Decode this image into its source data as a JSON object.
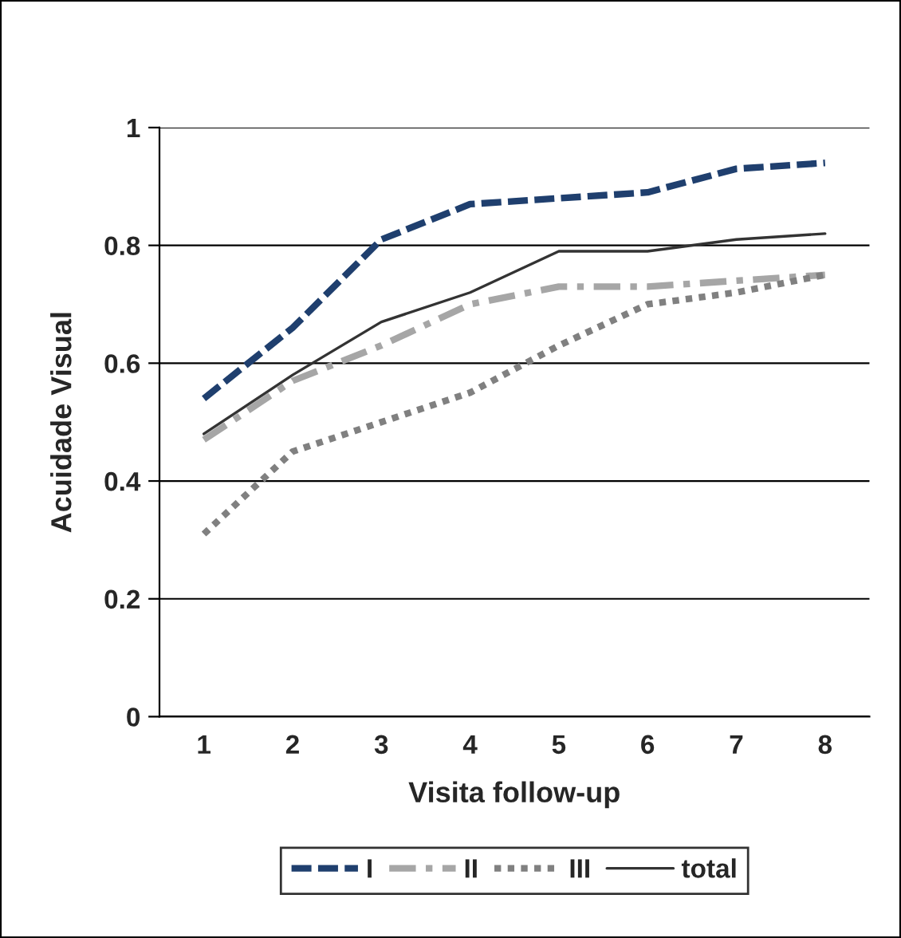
{
  "chart_data": {
    "type": "line",
    "xlabel": "Visita follow-up",
    "ylabel": "Acuidade Visual",
    "categories": [
      "1",
      "2",
      "3",
      "4",
      "5",
      "6",
      "7",
      "8"
    ],
    "series": [
      {
        "name": "I",
        "color": "#1f3f6e",
        "line_style": "dashed",
        "values": [
          0.54,
          0.66,
          0.81,
          0.87,
          0.88,
          0.89,
          0.93,
          0.94
        ]
      },
      {
        "name": "II",
        "color": "#a6a6a6",
        "line_style": "dashdot",
        "values": [
          0.47,
          0.57,
          0.63,
          0.7,
          0.73,
          0.73,
          0.74,
          0.75
        ]
      },
      {
        "name": "III",
        "color": "#808080",
        "line_style": "dotted",
        "values": [
          0.31,
          0.45,
          0.5,
          0.55,
          0.63,
          0.7,
          0.72,
          0.75
        ]
      },
      {
        "name": "total",
        "color": "#333333",
        "line_style": "solid",
        "values": [
          0.48,
          0.58,
          0.67,
          0.72,
          0.79,
          0.79,
          0.81,
          0.82
        ]
      }
    ],
    "ylim": [
      0,
      1
    ],
    "yticks": [
      0,
      0.2,
      0.4,
      0.6,
      0.8,
      1
    ],
    "grid": "y",
    "legend": "bottom",
    "marker": "none"
  }
}
